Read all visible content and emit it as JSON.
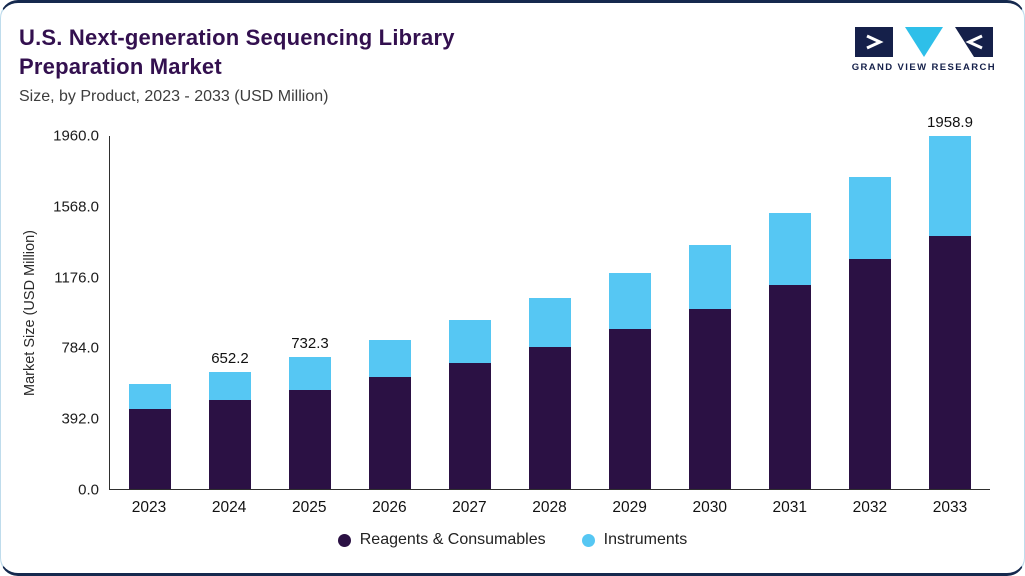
{
  "header": {
    "title_line1": "U.S. Next-generation Sequencing Library",
    "title_line2": "Preparation Market",
    "subtitle": "Size, by Product, 2023 - 2033 (USD Million)",
    "logo_text": "GRAND VIEW RESEARCH"
  },
  "brand_colors": {
    "logo_navy": "#15204a",
    "logo_cyan": "#2ebfe9",
    "title_purple": "#33104f",
    "card_border": "#bfdcec",
    "card_accent_line": "#15294e"
  },
  "chart_data": {
    "type": "bar",
    "stacked": true,
    "title": "U.S. Next-generation Sequencing Library Preparation Market",
    "subtitle": "Size, by Product, 2023 - 2033 (USD Million)",
    "ylabel": "Market Size (USD Million)",
    "xlabel": "",
    "grid": false,
    "legend_position": "bottom",
    "ylim": [
      0,
      1960
    ],
    "yticks": [
      0,
      392,
      784,
      1176,
      1568,
      1960
    ],
    "ytick_labels": [
      "0.0",
      "392.0",
      "784.0",
      "1176.0",
      "1568.0",
      "1960.0"
    ],
    "categories": [
      "2023",
      "2024",
      "2025",
      "2026",
      "2027",
      "2028",
      "2029",
      "2030",
      "2031",
      "2032",
      "2033"
    ],
    "series": [
      {
        "name": "Reagents & Consumables",
        "color": "#2B1144",
        "values": [
          446,
          497,
          552,
          621,
          700,
          789,
          889,
          1002,
          1131,
          1277,
          1404
        ]
      },
      {
        "name": "Instruments",
        "color": "#56C7F3",
        "values": [
          135,
          155.2,
          180.3,
          207,
          237,
          270,
          309,
          353,
          401,
          455,
          554.9
        ]
      }
    ],
    "totals": [
      581,
      652.2,
      732.3,
      828,
      937,
      1059,
      1198,
      1355,
      1532,
      1732,
      1958.9
    ],
    "bar_value_labels": [
      "",
      "652.2",
      "732.3",
      "",
      "",
      "",
      "",
      "",
      "",
      "",
      "1958.9"
    ]
  }
}
